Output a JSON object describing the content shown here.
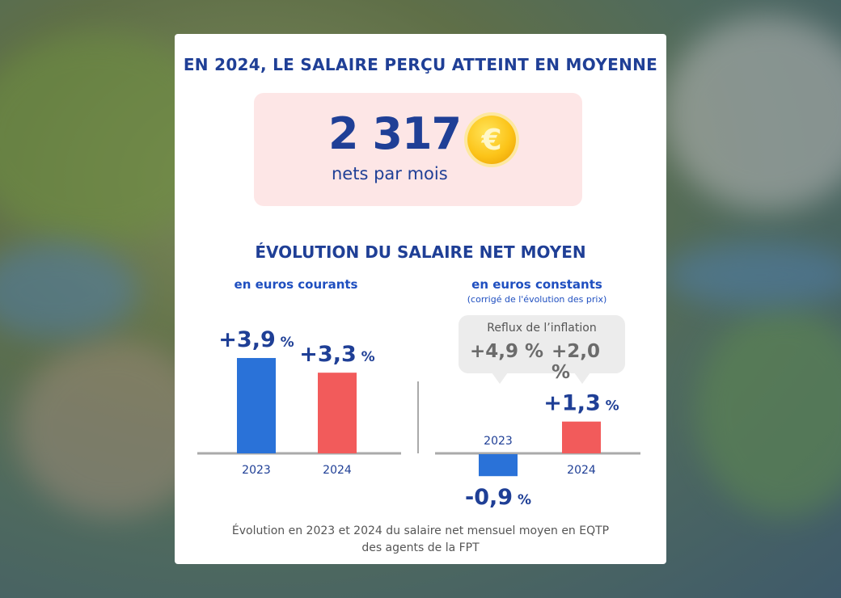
{
  "headline": "EN 2024, LE SALAIRE PERÇU ATTEINT EN MOYENNE",
  "salary": {
    "amount": "2 317",
    "currency_symbol": "€",
    "unit": "nets par mois",
    "coin_color": "#fcc419",
    "box_color": "#fde6e6"
  },
  "section_title": "ÉVOLUTION DU SALAIRE NET MOYEN",
  "chart_data": [
    {
      "type": "bar",
      "title": "en euros courants",
      "categories": [
        "2023",
        "2024"
      ],
      "values": [
        3.9,
        3.3
      ],
      "value_labels": [
        "+3,9",
        "+3,3"
      ],
      "unit": "%",
      "colors": [
        "#2a72d8",
        "#f25b5b"
      ]
    },
    {
      "type": "bar",
      "title": "en euros constants",
      "subtitle": "(corrigé de l'évolution des prix)",
      "categories": [
        "2023",
        "2024"
      ],
      "values": [
        -0.9,
        1.3
      ],
      "value_labels": [
        "-0,9",
        "+1,3"
      ],
      "unit": "%",
      "colors": [
        "#2a72d8",
        "#f25b5b"
      ],
      "annotation": {
        "title": "Reflux de l’inflation",
        "values": [
          "+4,9 %",
          "+2,0 %"
        ]
      }
    }
  ],
  "footnote": [
    "Évolution en 2023 et 2024 du salaire net mensuel moyen en EQTP",
    "des agents de la FPT"
  ],
  "colors": {
    "title_blue": "#1f3f96",
    "subtitle_blue": "#1f4fc0",
    "bar_2023": "#2a72d8",
    "bar_2024": "#f25b5b",
    "axis": "#aaaaaa"
  }
}
